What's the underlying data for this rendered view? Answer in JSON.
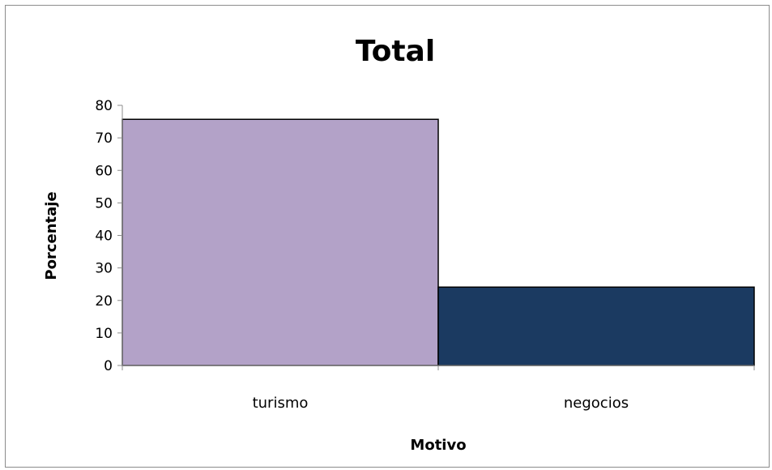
{
  "chart_data": {
    "type": "bar",
    "title": "Total",
    "xlabel": "Motivo",
    "ylabel": "Porcentaje",
    "categories": [
      "turismo",
      "negocios"
    ],
    "values": [
      75.7,
      24.1
    ],
    "colors": [
      "#b3a2c8",
      "#1b3a61"
    ],
    "ylim": [
      0,
      80
    ],
    "yticks": [
      0,
      10,
      20,
      30,
      40,
      50,
      60,
      70,
      80
    ],
    "grid": false,
    "legend": "none"
  }
}
